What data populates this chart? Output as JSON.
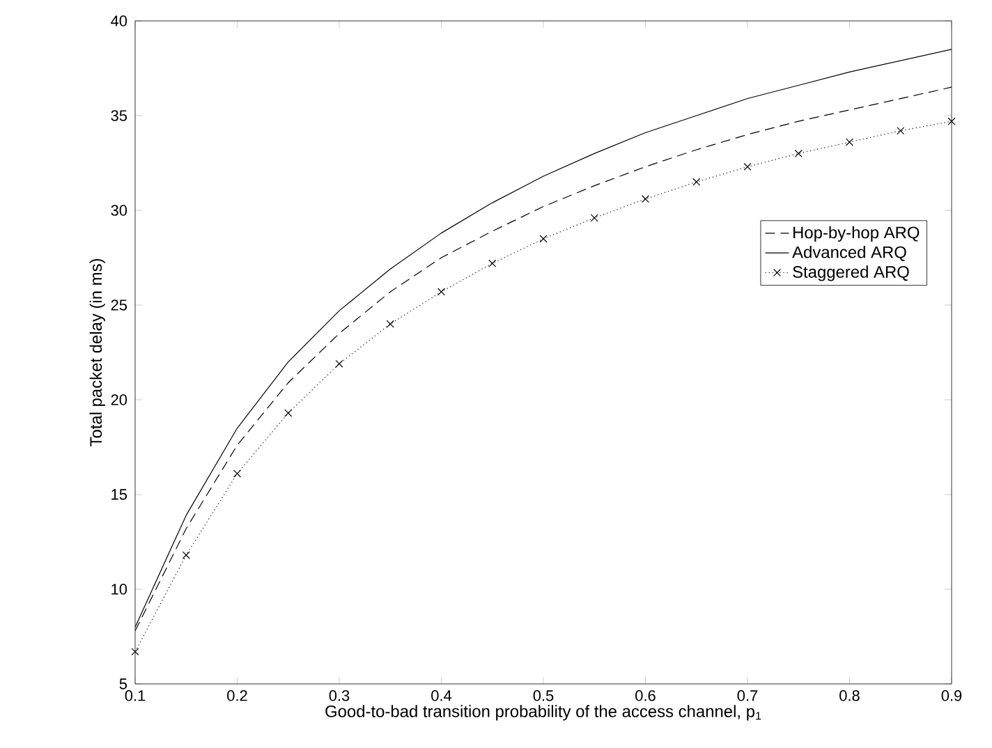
{
  "chart_data": {
    "type": "line",
    "xlabel": "Good-to-bad transition probability of the access channel, p$_{1}$",
    "ylabel": "Total packet delay (in ms)",
    "x": [
      0.1,
      0.15,
      0.2,
      0.25,
      0.3,
      0.35,
      0.4,
      0.45,
      0.5,
      0.55,
      0.6,
      0.65,
      0.7,
      0.75,
      0.8,
      0.85,
      0.9
    ],
    "series": [
      {
        "name": "Hop-by-hop ARQ",
        "color": "#000000",
        "line_style": "dashed",
        "marker": "none",
        "values": [
          7.8,
          13.2,
          17.6,
          20.9,
          23.5,
          25.7,
          27.5,
          28.9,
          30.2,
          31.3,
          32.3,
          33.2,
          34.0,
          34.7,
          35.3,
          35.9,
          36.5
        ]
      },
      {
        "name": "Advanced ARQ",
        "color": "#000000",
        "line_style": "solid",
        "marker": "none",
        "values": [
          8.0,
          13.9,
          18.5,
          22.0,
          24.7,
          26.9,
          28.8,
          30.4,
          31.8,
          33.0,
          34.1,
          35.0,
          35.9,
          36.6,
          37.3,
          37.9,
          38.5
        ]
      },
      {
        "name": "Staggered ARQ",
        "color": "#000000",
        "line_style": "dotted",
        "marker": "cross",
        "values": [
          6.7,
          11.8,
          16.1,
          19.3,
          21.9,
          24.0,
          25.7,
          27.2,
          28.5,
          29.6,
          30.6,
          31.5,
          32.3,
          33.0,
          33.6,
          34.2,
          34.7
        ]
      }
    ],
    "xlim": [
      0.1,
      0.9
    ],
    "ylim": [
      5,
      40
    ],
    "xticks": [
      0.1,
      0.2,
      0.3,
      0.4,
      0.5,
      0.6,
      0.7,
      0.8,
      0.9
    ],
    "yticks": [
      5,
      10,
      15,
      20,
      25,
      30,
      35,
      40
    ],
    "grid": false,
    "legend": "right"
  }
}
